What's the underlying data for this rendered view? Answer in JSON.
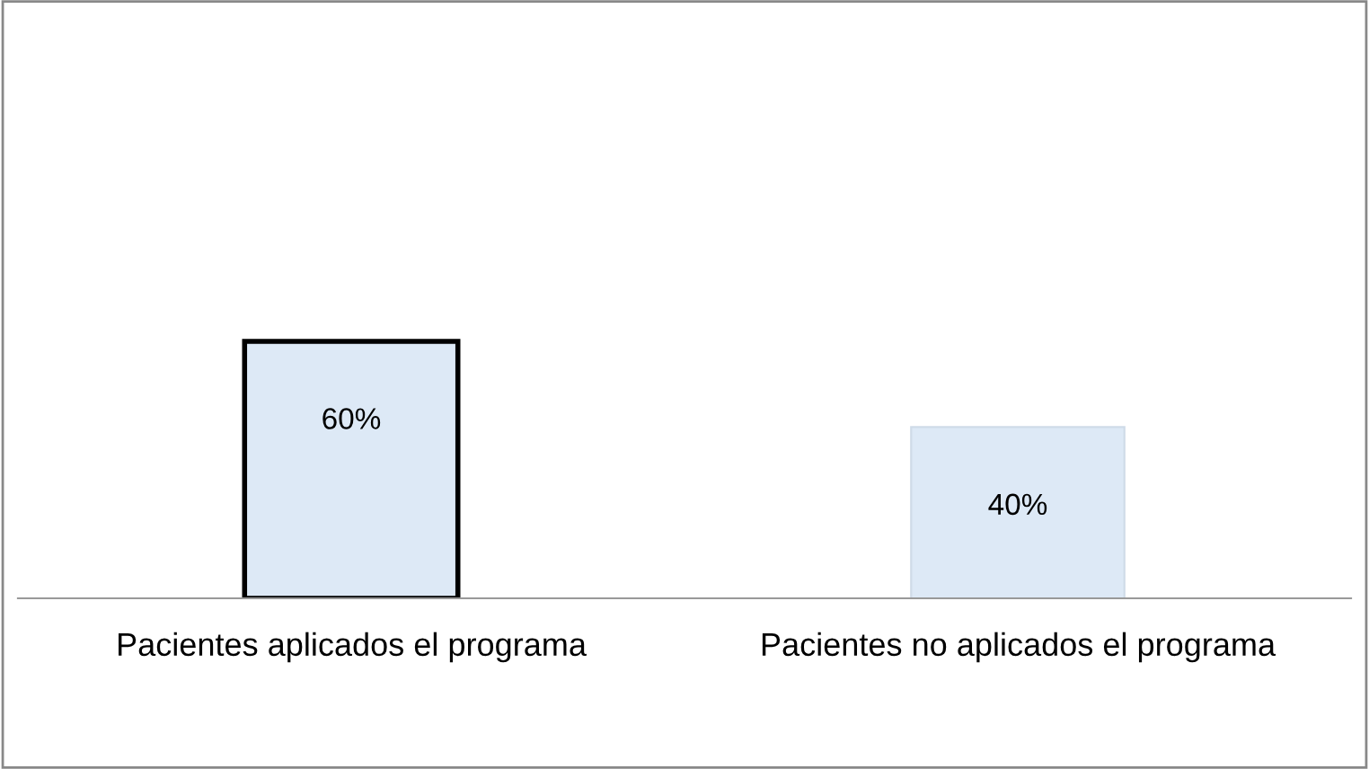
{
  "chart_data": {
    "type": "bar",
    "categories": [
      "Pacientes aplicados el programa",
      "Pacientes no aplicados el programa"
    ],
    "values": [
      60,
      40
    ],
    "value_labels": [
      "60%",
      "40%"
    ],
    "color": "#dde9f6"
  }
}
